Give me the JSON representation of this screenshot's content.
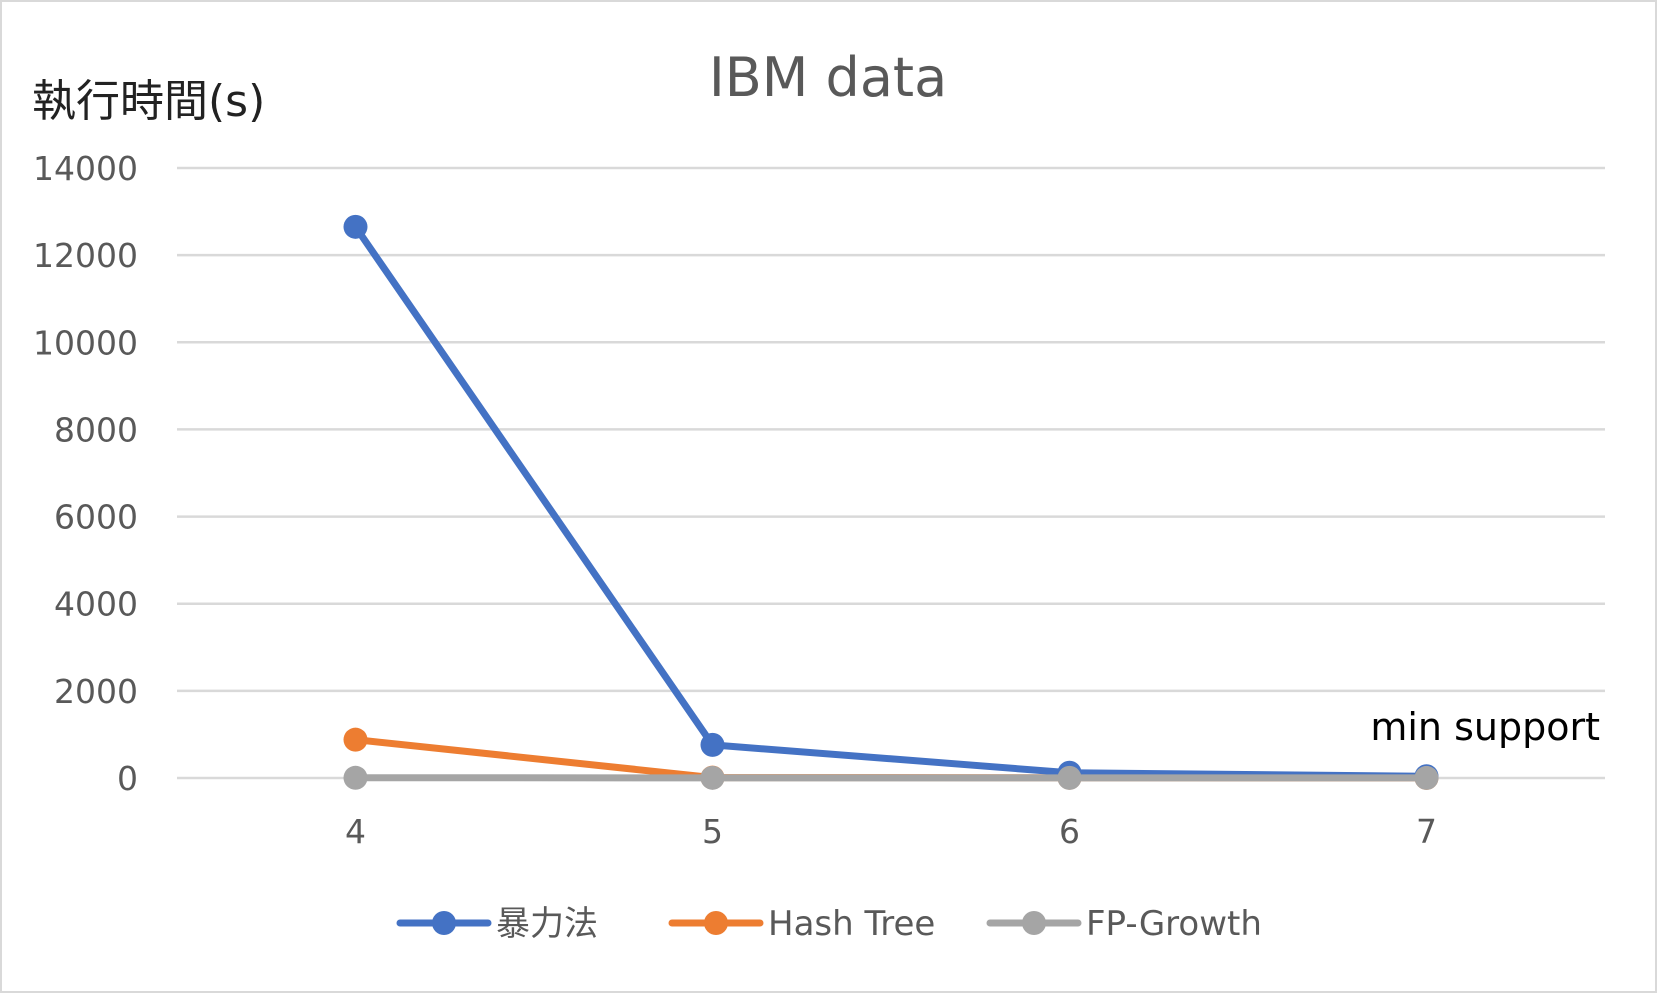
{
  "chart_data": {
    "type": "line",
    "title": "IBM data",
    "ylabel": "執行時間(s)",
    "xlabel": "min support",
    "categories": [
      "4",
      "5",
      "6",
      "7"
    ],
    "yticks": [
      0,
      2000,
      4000,
      6000,
      8000,
      10000,
      12000,
      14000
    ],
    "ylim": [
      0,
      14000
    ],
    "grid": true,
    "legend_position": "bottom",
    "series": [
      {
        "name": "暴力法",
        "color": "#4472C4",
        "values": [
          12650,
          760,
          120,
          40
        ]
      },
      {
        "name": "Hash Tree",
        "color": "#ED7D31",
        "values": [
          880,
          10,
          5,
          3
        ]
      },
      {
        "name": "FP-Growth",
        "color": "#A5A5A5",
        "values": [
          5,
          4,
          3,
          2
        ]
      }
    ]
  }
}
